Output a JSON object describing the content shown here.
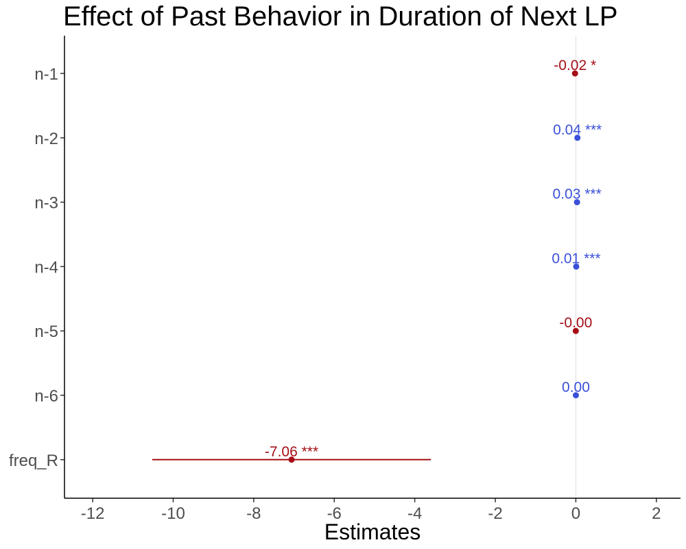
{
  "chart_data": {
    "type": "scatter",
    "title": "Effect of Past Behavior in Duration of Next LP",
    "xlabel": "Estimates",
    "ylabel": "",
    "xlim": [
      -12.7,
      2.6
    ],
    "xticks": [
      -12,
      -10,
      -8,
      -6,
      -4,
      -2,
      0,
      2
    ],
    "xtick_labels": [
      "-12",
      "-10",
      "-8",
      "-6",
      "-4",
      "-2",
      "0",
      "2"
    ],
    "reference_line": 0,
    "categories": [
      "n-1",
      "n-2",
      "n-3",
      "n-4",
      "n-5",
      "n-6",
      "freq_R"
    ],
    "estimates": [
      -0.02,
      0.04,
      0.03,
      0.01,
      -0.001,
      0.001,
      -7.06
    ],
    "ci_low": [
      null,
      null,
      null,
      null,
      null,
      null,
      -10.52
    ],
    "ci_high": [
      null,
      null,
      null,
      null,
      null,
      null,
      -3.6
    ],
    "labels": [
      "-0.02 *",
      "0.04 ***",
      "0.03 ***",
      "0.01 ***",
      "-0.00",
      "0.00",
      "-7.06 ***"
    ],
    "colors": {
      "negative": "#a50f15",
      "positive": "#3a50d9",
      "axis": "#000000",
      "tick_text": "#4d4d4d",
      "zero_line": "#ebebeb"
    },
    "grid": false
  }
}
